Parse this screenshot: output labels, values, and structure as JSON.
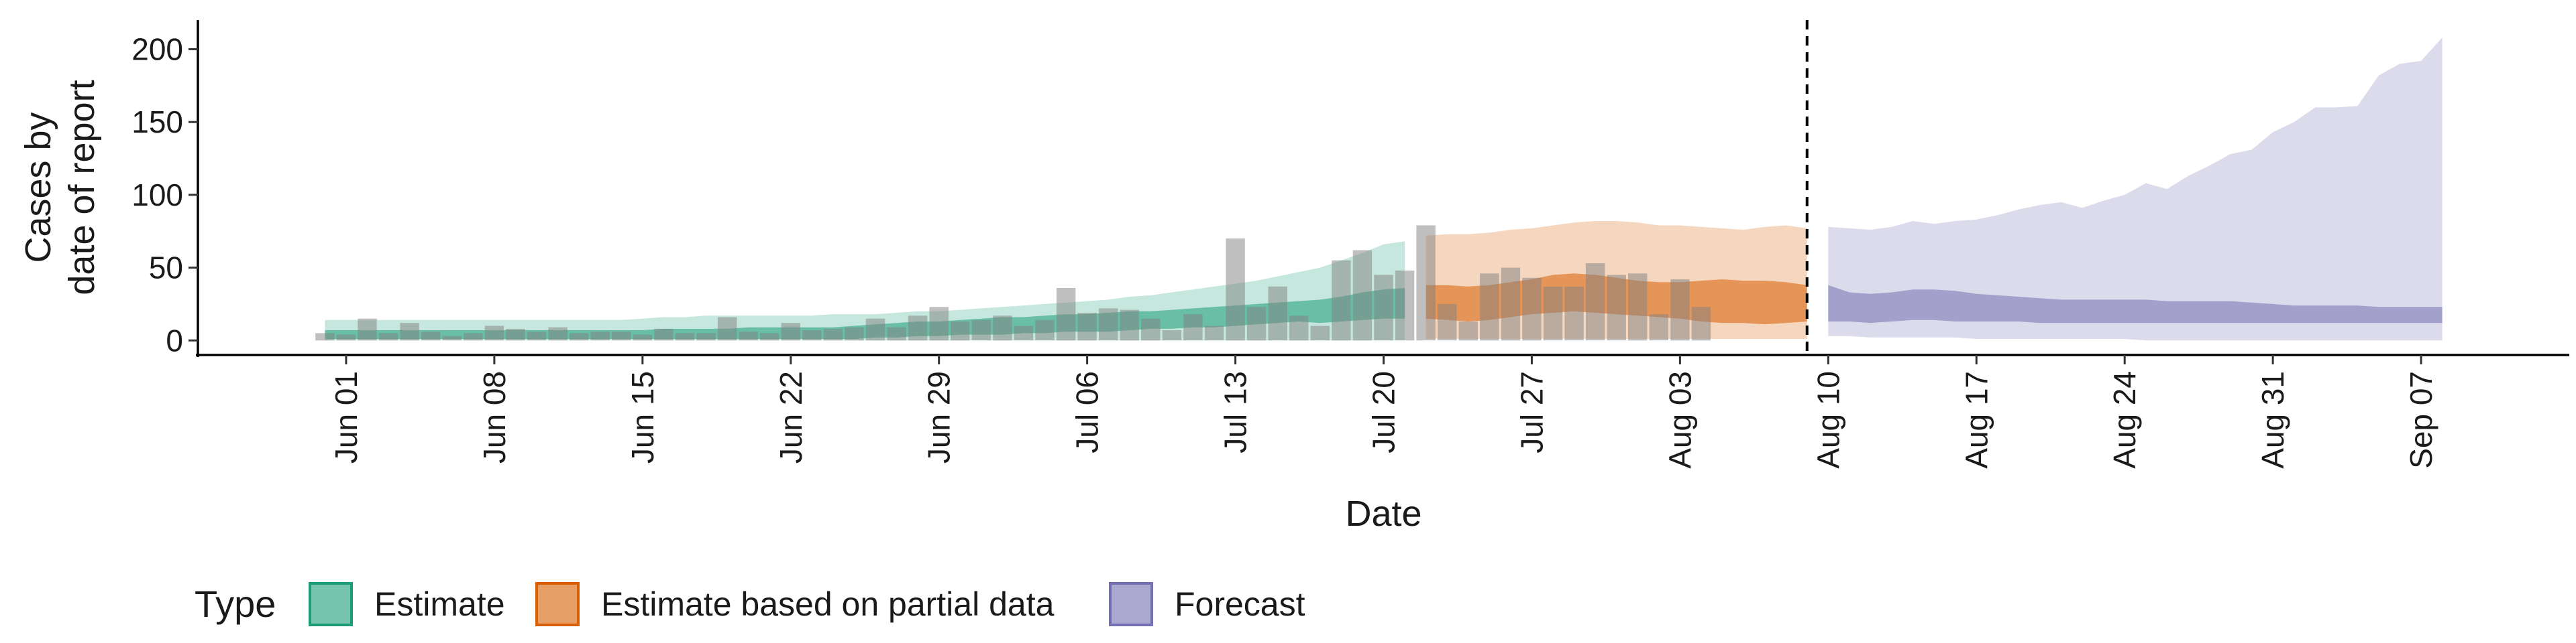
{
  "chart_data": {
    "type": "area",
    "ylabel_lines": [
      "Cases by",
      "date of report"
    ],
    "xlabel": "Date",
    "ylim": [
      -10,
      220
    ],
    "y_ticks": [
      0,
      50,
      100,
      150,
      200
    ],
    "x_start_date": "2020-05-25",
    "x_end_date": "2020-09-14",
    "x_ticks": [
      {
        "date": "2020-06-01",
        "label": "Jun 01"
      },
      {
        "date": "2020-06-08",
        "label": "Jun 08"
      },
      {
        "date": "2020-06-15",
        "label": "Jun 15"
      },
      {
        "date": "2020-06-22",
        "label": "Jun 22"
      },
      {
        "date": "2020-06-29",
        "label": "Jun 29"
      },
      {
        "date": "2020-07-06",
        "label": "Jul 06"
      },
      {
        "date": "2020-07-13",
        "label": "Jul 13"
      },
      {
        "date": "2020-07-20",
        "label": "Jul 20"
      },
      {
        "date": "2020-07-27",
        "label": "Jul 27"
      },
      {
        "date": "2020-08-03",
        "label": "Aug 03"
      },
      {
        "date": "2020-08-10",
        "label": "Aug 10"
      },
      {
        "date": "2020-08-17",
        "label": "Aug 17"
      },
      {
        "date": "2020-08-24",
        "label": "Aug 24"
      },
      {
        "date": "2020-08-31",
        "label": "Aug 31"
      },
      {
        "date": "2020-09-07",
        "label": "Sep 07"
      }
    ],
    "vline_date": "2020-08-09",
    "legend": {
      "title": "Type",
      "position": "bottom",
      "items": [
        {
          "label": "Estimate",
          "color": "#1b9e77"
        },
        {
          "label": "Estimate based on partial data",
          "color": "#d95f02"
        },
        {
          "label": "Forecast",
          "color": "#7570b3"
        }
      ]
    },
    "bars": {
      "start_date": "2020-05-31",
      "color": "#7f7f7f",
      "values": [
        5,
        4,
        15,
        5,
        12,
        6,
        3,
        5,
        10,
        8,
        6,
        9,
        5,
        6,
        6,
        4,
        8,
        5,
        5,
        16,
        6,
        5,
        12,
        7,
        8,
        9,
        15,
        9,
        17,
        23,
        13,
        14,
        17,
        10,
        14,
        36,
        19,
        22,
        21,
        15,
        7,
        18,
        10,
        70,
        23,
        37,
        17,
        10,
        55,
        62,
        45,
        48,
        79,
        25,
        13,
        46,
        50,
        43,
        37,
        37,
        53,
        45,
        46,
        18,
        42,
        23
      ]
    },
    "series": [
      {
        "name": "Estimate",
        "color": "#1b9e77",
        "start_date": "2020-05-31",
        "outer_lower": [
          0,
          0,
          0,
          0,
          0,
          0,
          0,
          0,
          0,
          0,
          0,
          0,
          0,
          0,
          0,
          0,
          0,
          0,
          0,
          0,
          0,
          0,
          0,
          0,
          0,
          0,
          0,
          0,
          0,
          0,
          0,
          0,
          0,
          0,
          0,
          0,
          0,
          0,
          0,
          0,
          0,
          0,
          0,
          0,
          0,
          0,
          0,
          0,
          0,
          0,
          0,
          0
        ],
        "outer_upper": [
          14,
          14,
          14,
          14,
          14,
          14,
          14,
          14,
          14,
          14,
          14,
          14,
          14,
          14,
          14,
          15,
          16,
          16,
          17,
          17,
          17,
          17,
          17,
          17,
          18,
          18,
          18,
          19,
          20,
          20,
          21,
          22,
          23,
          24,
          25,
          26,
          27,
          28,
          30,
          31,
          33,
          35,
          37,
          39,
          41,
          44,
          47,
          50,
          55,
          60,
          66,
          68
        ],
        "inner_lower": [
          1,
          1,
          1,
          1,
          1,
          1,
          1,
          1,
          1,
          1,
          1,
          1,
          1,
          1,
          1,
          1,
          1,
          1,
          1,
          1,
          1,
          1,
          1,
          1,
          1,
          1,
          2,
          2,
          3,
          3,
          4,
          4,
          4,
          5,
          5,
          6,
          6,
          6,
          7,
          8,
          8,
          9,
          9,
          10,
          11,
          12,
          13,
          12,
          13,
          14,
          15,
          15
        ],
        "inner_upper": [
          7,
          7,
          7,
          7,
          7,
          7,
          7,
          7,
          7,
          7,
          7,
          7,
          7,
          7,
          7,
          7,
          8,
          8,
          8,
          8,
          9,
          9,
          9,
          9,
          9,
          10,
          11,
          12,
          13,
          13,
          14,
          15,
          16,
          16,
          17,
          18,
          18,
          19,
          20,
          20,
          21,
          22,
          23,
          24,
          25,
          26,
          27,
          28,
          30,
          33,
          35,
          36
        ]
      },
      {
        "name": "Estimate based on partial data",
        "color": "#d95f02",
        "start_date": "2020-07-22",
        "outer_lower": [
          1,
          1,
          1,
          1,
          1,
          1,
          1,
          1,
          1,
          1,
          1,
          1,
          1,
          1,
          1,
          1,
          1,
          1,
          1
        ],
        "outer_upper": [
          72,
          73,
          73,
          74,
          76,
          77,
          79,
          81,
          82,
          82,
          81,
          79,
          79,
          78,
          77,
          76,
          78,
          79,
          77
        ],
        "inner_lower": [
          15,
          14,
          13,
          14,
          16,
          18,
          19,
          20,
          19,
          18,
          17,
          16,
          15,
          13,
          12,
          12,
          11,
          12,
          13
        ],
        "inner_upper": [
          38,
          38,
          37,
          38,
          40,
          42,
          45,
          46,
          45,
          43,
          41,
          40,
          40,
          41,
          42,
          41,
          41,
          40,
          38
        ]
      },
      {
        "name": "Forecast",
        "color": "#7570b3",
        "start_date": "2020-08-10",
        "outer_lower": [
          3,
          3,
          2,
          2,
          2,
          2,
          2,
          1,
          1,
          1,
          1,
          1,
          1,
          1,
          1,
          0,
          0,
          0,
          0,
          0,
          0,
          0,
          0,
          0,
          0,
          0,
          0,
          0,
          0,
          0
        ],
        "outer_upper": [
          78,
          77,
          76,
          78,
          82,
          80,
          82,
          83,
          86,
          90,
          93,
          95,
          91,
          96,
          100,
          108,
          104,
          113,
          120,
          128,
          131,
          143,
          150,
          160,
          160,
          161,
          182,
          190,
          192,
          208
        ],
        "inner_lower": [
          13,
          13,
          12,
          13,
          14,
          14,
          13,
          13,
          13,
          13,
          12,
          12,
          12,
          12,
          12,
          12,
          12,
          12,
          12,
          12,
          12,
          12,
          12,
          12,
          12,
          12,
          12,
          12,
          12,
          12
        ],
        "inner_upper": [
          38,
          33,
          32,
          33,
          35,
          35,
          34,
          32,
          31,
          30,
          29,
          28,
          28,
          28,
          28,
          28,
          27,
          27,
          27,
          27,
          26,
          25,
          24,
          24,
          24,
          24,
          23,
          23,
          23,
          23
        ]
      }
    ]
  }
}
